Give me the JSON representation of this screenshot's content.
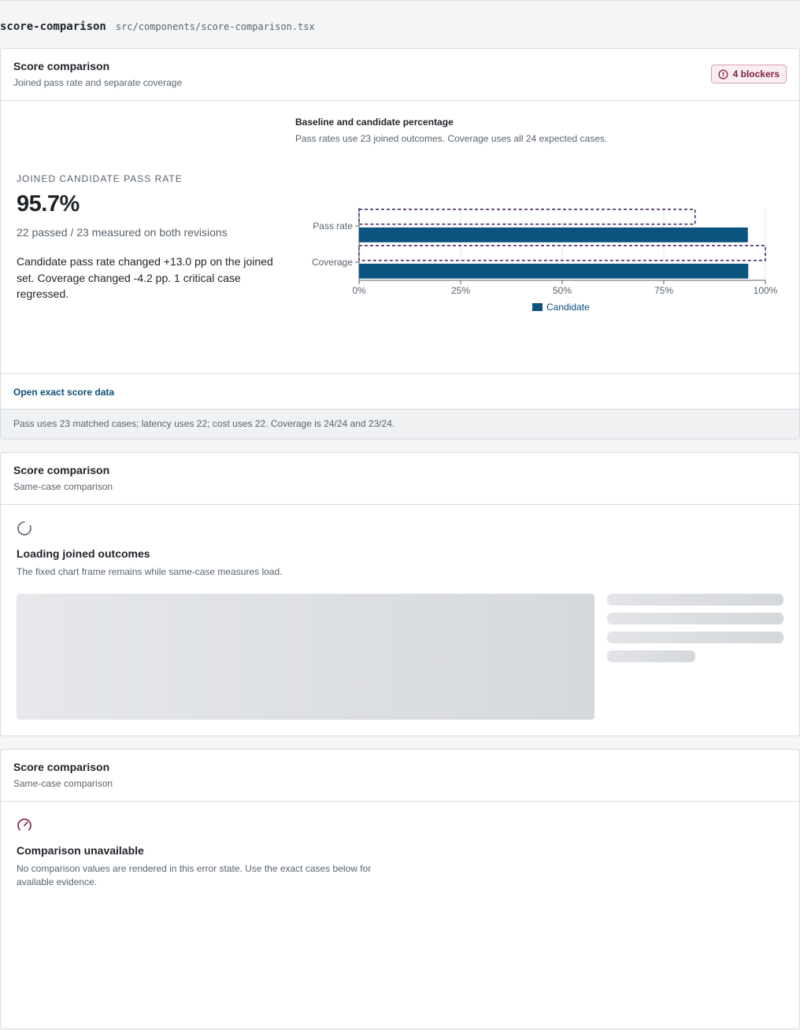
{
  "header": {
    "component": "score-comparison",
    "path": "src/components/score-comparison.tsx"
  },
  "ready_card": {
    "title": "Score comparison",
    "subtitle": "Joined pass rate and separate coverage",
    "badge_label": "4 blockers",
    "badge_icon": "alert-circle-icon",
    "kpi_label": "JOINED CANDIDATE PASS RATE",
    "kpi_value": "95.7%",
    "kpi_count": "22 passed / 23 measured on both revisions",
    "kpi_note": "Candidate pass rate changed +13.0 pp on the joined set. Coverage changed -4.2 pp. 1 critical case regressed.",
    "chart_title": "Baseline and candidate percentage",
    "chart_subtitle": "Pass rates use 23 joined outcomes. Coverage uses all 24 expected cases.",
    "link_label": "Open exact score data",
    "footnote": "Pass uses 23 matched cases; latency uses 22; cost uses 22. Coverage is 24/24 and 23/24."
  },
  "chart_data": {
    "type": "bar",
    "orientation": "horizontal",
    "categories": [
      "Pass rate",
      "Coverage"
    ],
    "series": [
      {
        "values": [
          82.7,
          100
        ],
        "style": "dashed-outline"
      },
      {
        "name": "Candidate",
        "values": [
          95.7,
          95.8
        ],
        "style": "filled"
      }
    ],
    "xlim": [
      0,
      100
    ],
    "x_ticks": [
      "0%",
      "25%",
      "50%",
      "75%",
      "100%"
    ],
    "grid": true,
    "legend": "bottom-center",
    "colors": {
      "candidate": "#0b5480",
      "baseline_outline": "#4a2a6a"
    }
  },
  "loading_card": {
    "title": "Score comparison",
    "subtitle": "Same-case comparison",
    "state_icon": "spinner-icon",
    "state_title": "Loading joined outcomes",
    "state_desc": "The fixed chart frame remains while same-case measures load."
  },
  "error_card": {
    "title": "Score comparison",
    "subtitle": "Same-case comparison",
    "state_icon": "gauge-icon",
    "state_title": "Comparison unavailable",
    "state_desc": "No comparison values are rendered in this error state. Use the exact cases below for available evidence."
  }
}
